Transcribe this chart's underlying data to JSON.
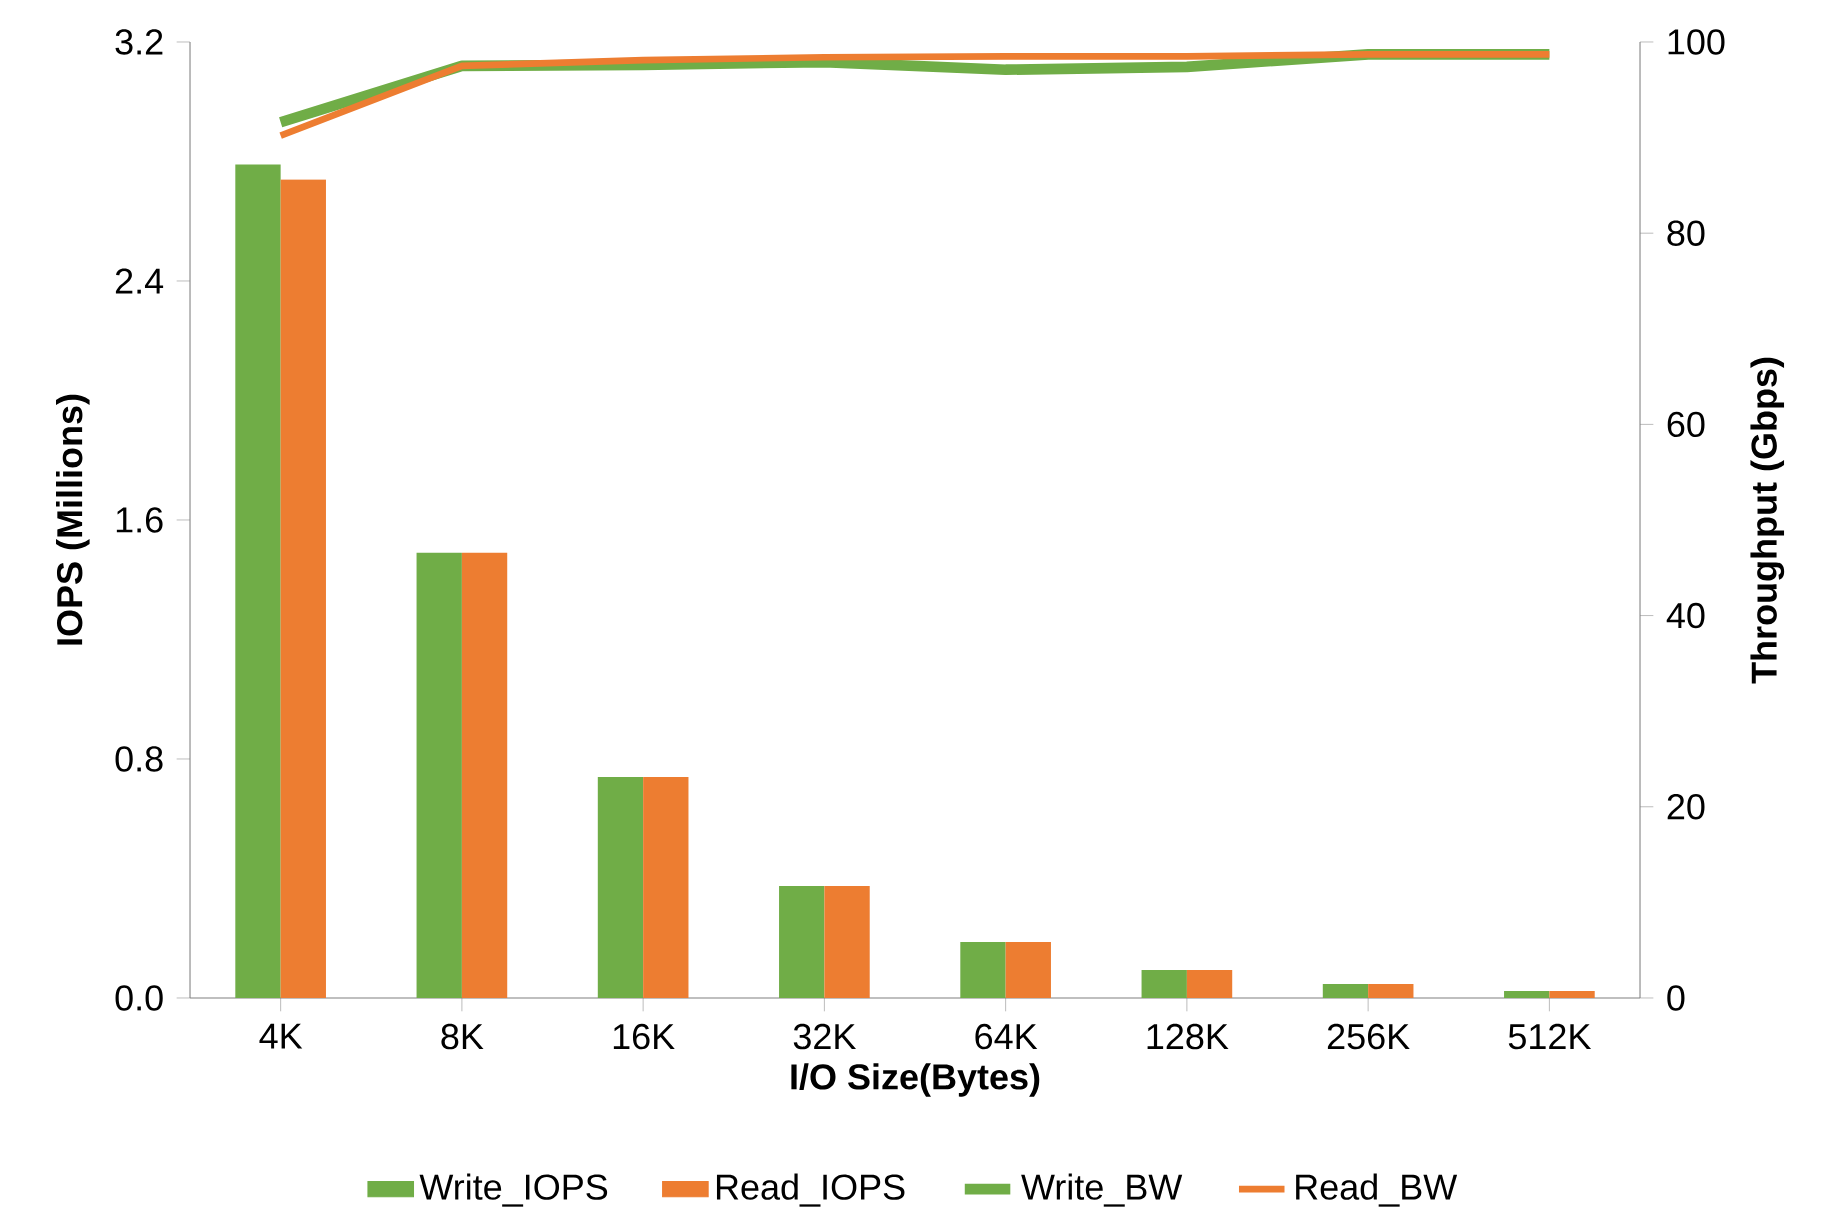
{
  "chart_data": {
    "type": "bar",
    "categories": [
      "4K",
      "8K",
      "16K",
      "32K",
      "64K",
      "128K",
      "256K",
      "512K"
    ],
    "xlabel": "I/O Size(Bytes)",
    "ylabel": "IOPS (Millions)",
    "y2label": "Throughput (Gbps)",
    "ylim": [
      0,
      3.2
    ],
    "yticks": [
      {
        "value": 0,
        "label": "0.0"
      },
      {
        "value": 0.8,
        "label": "0.8"
      },
      {
        "value": 1.6,
        "label": "1.6"
      },
      {
        "value": 2.4,
        "label": "2.4"
      },
      {
        "value": 3.2,
        "label": "3.2"
      }
    ],
    "y2lim": [
      0,
      100
    ],
    "y2ticks": [
      0,
      20,
      40,
      60,
      80,
      100
    ],
    "legend": "bottom",
    "grid": false,
    "series": [
      {
        "name": "Write_IOPS",
        "color": "#70ad47",
        "values": [
          2.79,
          1.49,
          0.74,
          0.375,
          0.187,
          0.094,
          0.047,
          0.023
        ]
      },
      {
        "name": "Read_IOPS",
        "color": "#ed7d31",
        "values": [
          2.74,
          1.49,
          0.74,
          0.375,
          0.187,
          0.094,
          0.047,
          0.023
        ]
      },
      {
        "name": "Write_BW",
        "type": "line",
        "axis": "y2",
        "color": "#70ad47",
        "values": [
          91.6,
          97.5,
          97.6,
          97.9,
          97.1,
          97.4,
          98.7,
          98.7
        ]
      },
      {
        "name": "Read_BW",
        "type": "line",
        "axis": "y2",
        "color": "#ed7d31",
        "values": [
          90.2,
          97.5,
          98.1,
          98.4,
          98.5,
          98.5,
          98.7,
          98.7
        ]
      }
    ]
  }
}
